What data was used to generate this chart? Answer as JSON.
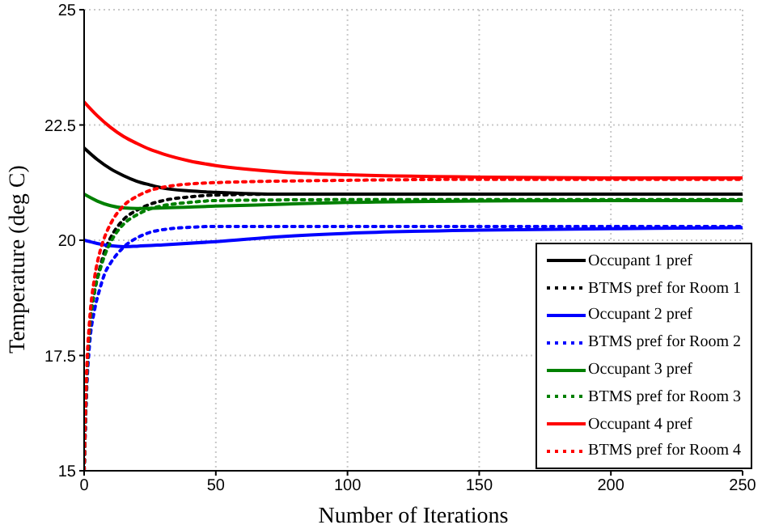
{
  "chart_data": {
    "type": "line",
    "xlabel": "Number of Iterations",
    "ylabel": "Temperature (deg C)",
    "xlim": [
      0,
      250
    ],
    "xticks": [
      0,
      50,
      100,
      150,
      200,
      250
    ],
    "ylim": [
      15,
      25
    ],
    "yticks": [
      15,
      17.5,
      20,
      22.5,
      25
    ],
    "grid": true,
    "legend": "bottom right",
    "series": [
      {
        "name": "Occupant 1 pref",
        "color": "#000000",
        "line_style": "solid",
        "x": [
          0,
          5,
          10,
          15,
          20,
          25,
          30,
          40,
          50,
          75,
          100,
          150,
          200,
          250
        ],
        "values": [
          22,
          21.75,
          21.55,
          21.4,
          21.28,
          21.2,
          21.13,
          21.07,
          21.04,
          21.0,
          21.0,
          21.0,
          21.0,
          21.0
        ]
      },
      {
        "name": "BTMS pref for Room 1",
        "color": "#000000",
        "line_style": "dotted",
        "x": [
          0,
          1,
          2,
          4,
          6,
          8,
          10,
          15,
          20,
          25,
          30,
          40,
          50,
          75,
          100,
          250
        ],
        "values": [
          15,
          17,
          18,
          18.9,
          19.4,
          19.8,
          20.05,
          20.45,
          20.65,
          20.78,
          20.86,
          20.94,
          20.98,
          21.0,
          21.0,
          21.0
        ]
      },
      {
        "name": "Occupant 2 pref",
        "color": "#0000ff",
        "line_style": "solid",
        "x": [
          0,
          5,
          10,
          15,
          20,
          30,
          50,
          75,
          100,
          150,
          200,
          250
        ],
        "values": [
          20,
          19.93,
          19.88,
          19.86,
          19.87,
          19.9,
          19.97,
          20.08,
          20.15,
          20.22,
          20.25,
          20.27
        ]
      },
      {
        "name": "BTMS pref for Room 2",
        "color": "#0000ff",
        "line_style": "dotted",
        "x": [
          0,
          1,
          2,
          4,
          6,
          8,
          10,
          15,
          20,
          25,
          30,
          40,
          50,
          100,
          250
        ],
        "values": [
          15,
          16.8,
          17.7,
          18.5,
          18.95,
          19.3,
          19.5,
          19.85,
          20.05,
          20.17,
          20.23,
          20.28,
          20.3,
          20.3,
          20.3
        ]
      },
      {
        "name": "Occupant 3 pref",
        "color": "#008000",
        "line_style": "solid",
        "x": [
          0,
          5,
          10,
          15,
          20,
          30,
          50,
          75,
          100,
          150,
          200,
          250
        ],
        "values": [
          21,
          20.85,
          20.75,
          20.7,
          20.69,
          20.7,
          20.74,
          20.78,
          20.82,
          20.85,
          20.86,
          20.86
        ]
      },
      {
        "name": "BTMS pref for Room 3",
        "color": "#008000",
        "line_style": "dotted",
        "x": [
          0,
          1,
          2,
          4,
          6,
          8,
          10,
          15,
          20,
          25,
          30,
          40,
          50,
          100,
          250
        ],
        "values": [
          15,
          17,
          18,
          18.9,
          19.35,
          19.7,
          19.95,
          20.35,
          20.55,
          20.68,
          20.75,
          20.82,
          20.86,
          20.88,
          20.88
        ]
      },
      {
        "name": "Occupant 4 pref",
        "color": "#ff0000",
        "line_style": "solid",
        "x": [
          0,
          5,
          10,
          15,
          20,
          25,
          30,
          40,
          50,
          75,
          100,
          150,
          200,
          250
        ],
        "values": [
          23,
          22.7,
          22.45,
          22.25,
          22.1,
          21.97,
          21.87,
          21.72,
          21.62,
          21.48,
          21.42,
          21.37,
          21.35,
          21.35
        ]
      },
      {
        "name": "BTMS pref for Room 4",
        "color": "#ff0000",
        "line_style": "dotted",
        "x": [
          0,
          1,
          2,
          4,
          6,
          8,
          10,
          15,
          20,
          25,
          30,
          40,
          50,
          100,
          150,
          250
        ],
        "values": [
          15,
          17.2,
          18.2,
          19.2,
          19.75,
          20.1,
          20.35,
          20.75,
          20.95,
          21.08,
          21.15,
          21.22,
          21.25,
          21.3,
          21.32,
          21.32
        ]
      }
    ]
  }
}
